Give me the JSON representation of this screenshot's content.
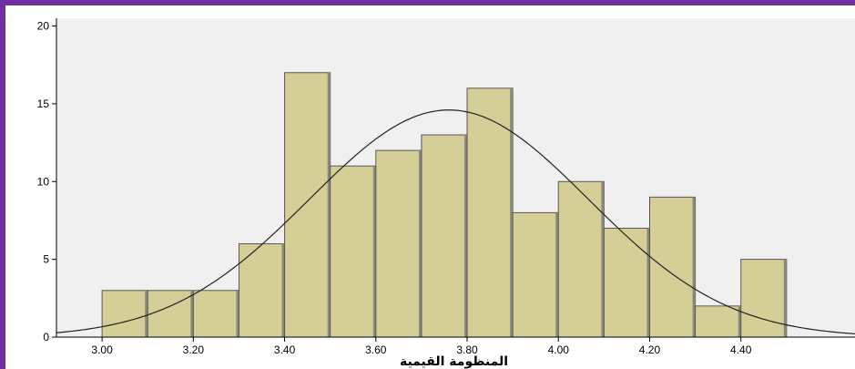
{
  "chart_data": {
    "type": "bar",
    "title": "",
    "xlabel": "المنظومة القيمية",
    "ylabel": "",
    "bin_width": 0.1,
    "bins": [
      {
        "from": 3.0,
        "to": 3.1,
        "count": 3
      },
      {
        "from": 3.1,
        "to": 3.2,
        "count": 3
      },
      {
        "from": 3.2,
        "to": 3.3,
        "count": 3
      },
      {
        "from": 3.3,
        "to": 3.4,
        "count": 6
      },
      {
        "from": 3.4,
        "to": 3.5,
        "count": 17
      },
      {
        "from": 3.5,
        "to": 3.6,
        "count": 11
      },
      {
        "from": 3.6,
        "to": 3.7,
        "count": 12
      },
      {
        "from": 3.7,
        "to": 3.8,
        "count": 13
      },
      {
        "from": 3.8,
        "to": 3.9,
        "count": 16
      },
      {
        "from": 3.9,
        "to": 4.0,
        "count": 8
      },
      {
        "from": 4.0,
        "to": 4.1,
        "count": 10
      },
      {
        "from": 4.1,
        "to": 4.2,
        "count": 7
      },
      {
        "from": 4.2,
        "to": 4.3,
        "count": 9
      },
      {
        "from": 4.3,
        "to": 4.4,
        "count": 2
      },
      {
        "from": 4.4,
        "to": 4.5,
        "count": 5
      }
    ],
    "normal_curve": {
      "mean": 3.76,
      "std_dev": 0.306,
      "peak": 14.6
    },
    "x_ticks": [
      "3.00",
      "3.20",
      "3.40",
      "3.60",
      "3.80",
      "4.00",
      "4.20",
      "4.40"
    ],
    "x_tick_values": [
      3.0,
      3.2,
      3.4,
      3.6,
      3.8,
      4.0,
      4.2,
      4.4
    ],
    "y_ticks": [
      "0",
      "5",
      "10",
      "15",
      "20"
    ],
    "y_tick_values": [
      0,
      5,
      10,
      15,
      20
    ],
    "xlim": [
      2.9,
      4.65
    ],
    "ylim": [
      0,
      20.5
    ],
    "grid": false,
    "colors": {
      "bar_fill": "#d5cf97",
      "bar_stroke": "#555555",
      "plot_background": "#f0f0f0",
      "curve": "#222222",
      "frame": "#7030a0"
    }
  }
}
